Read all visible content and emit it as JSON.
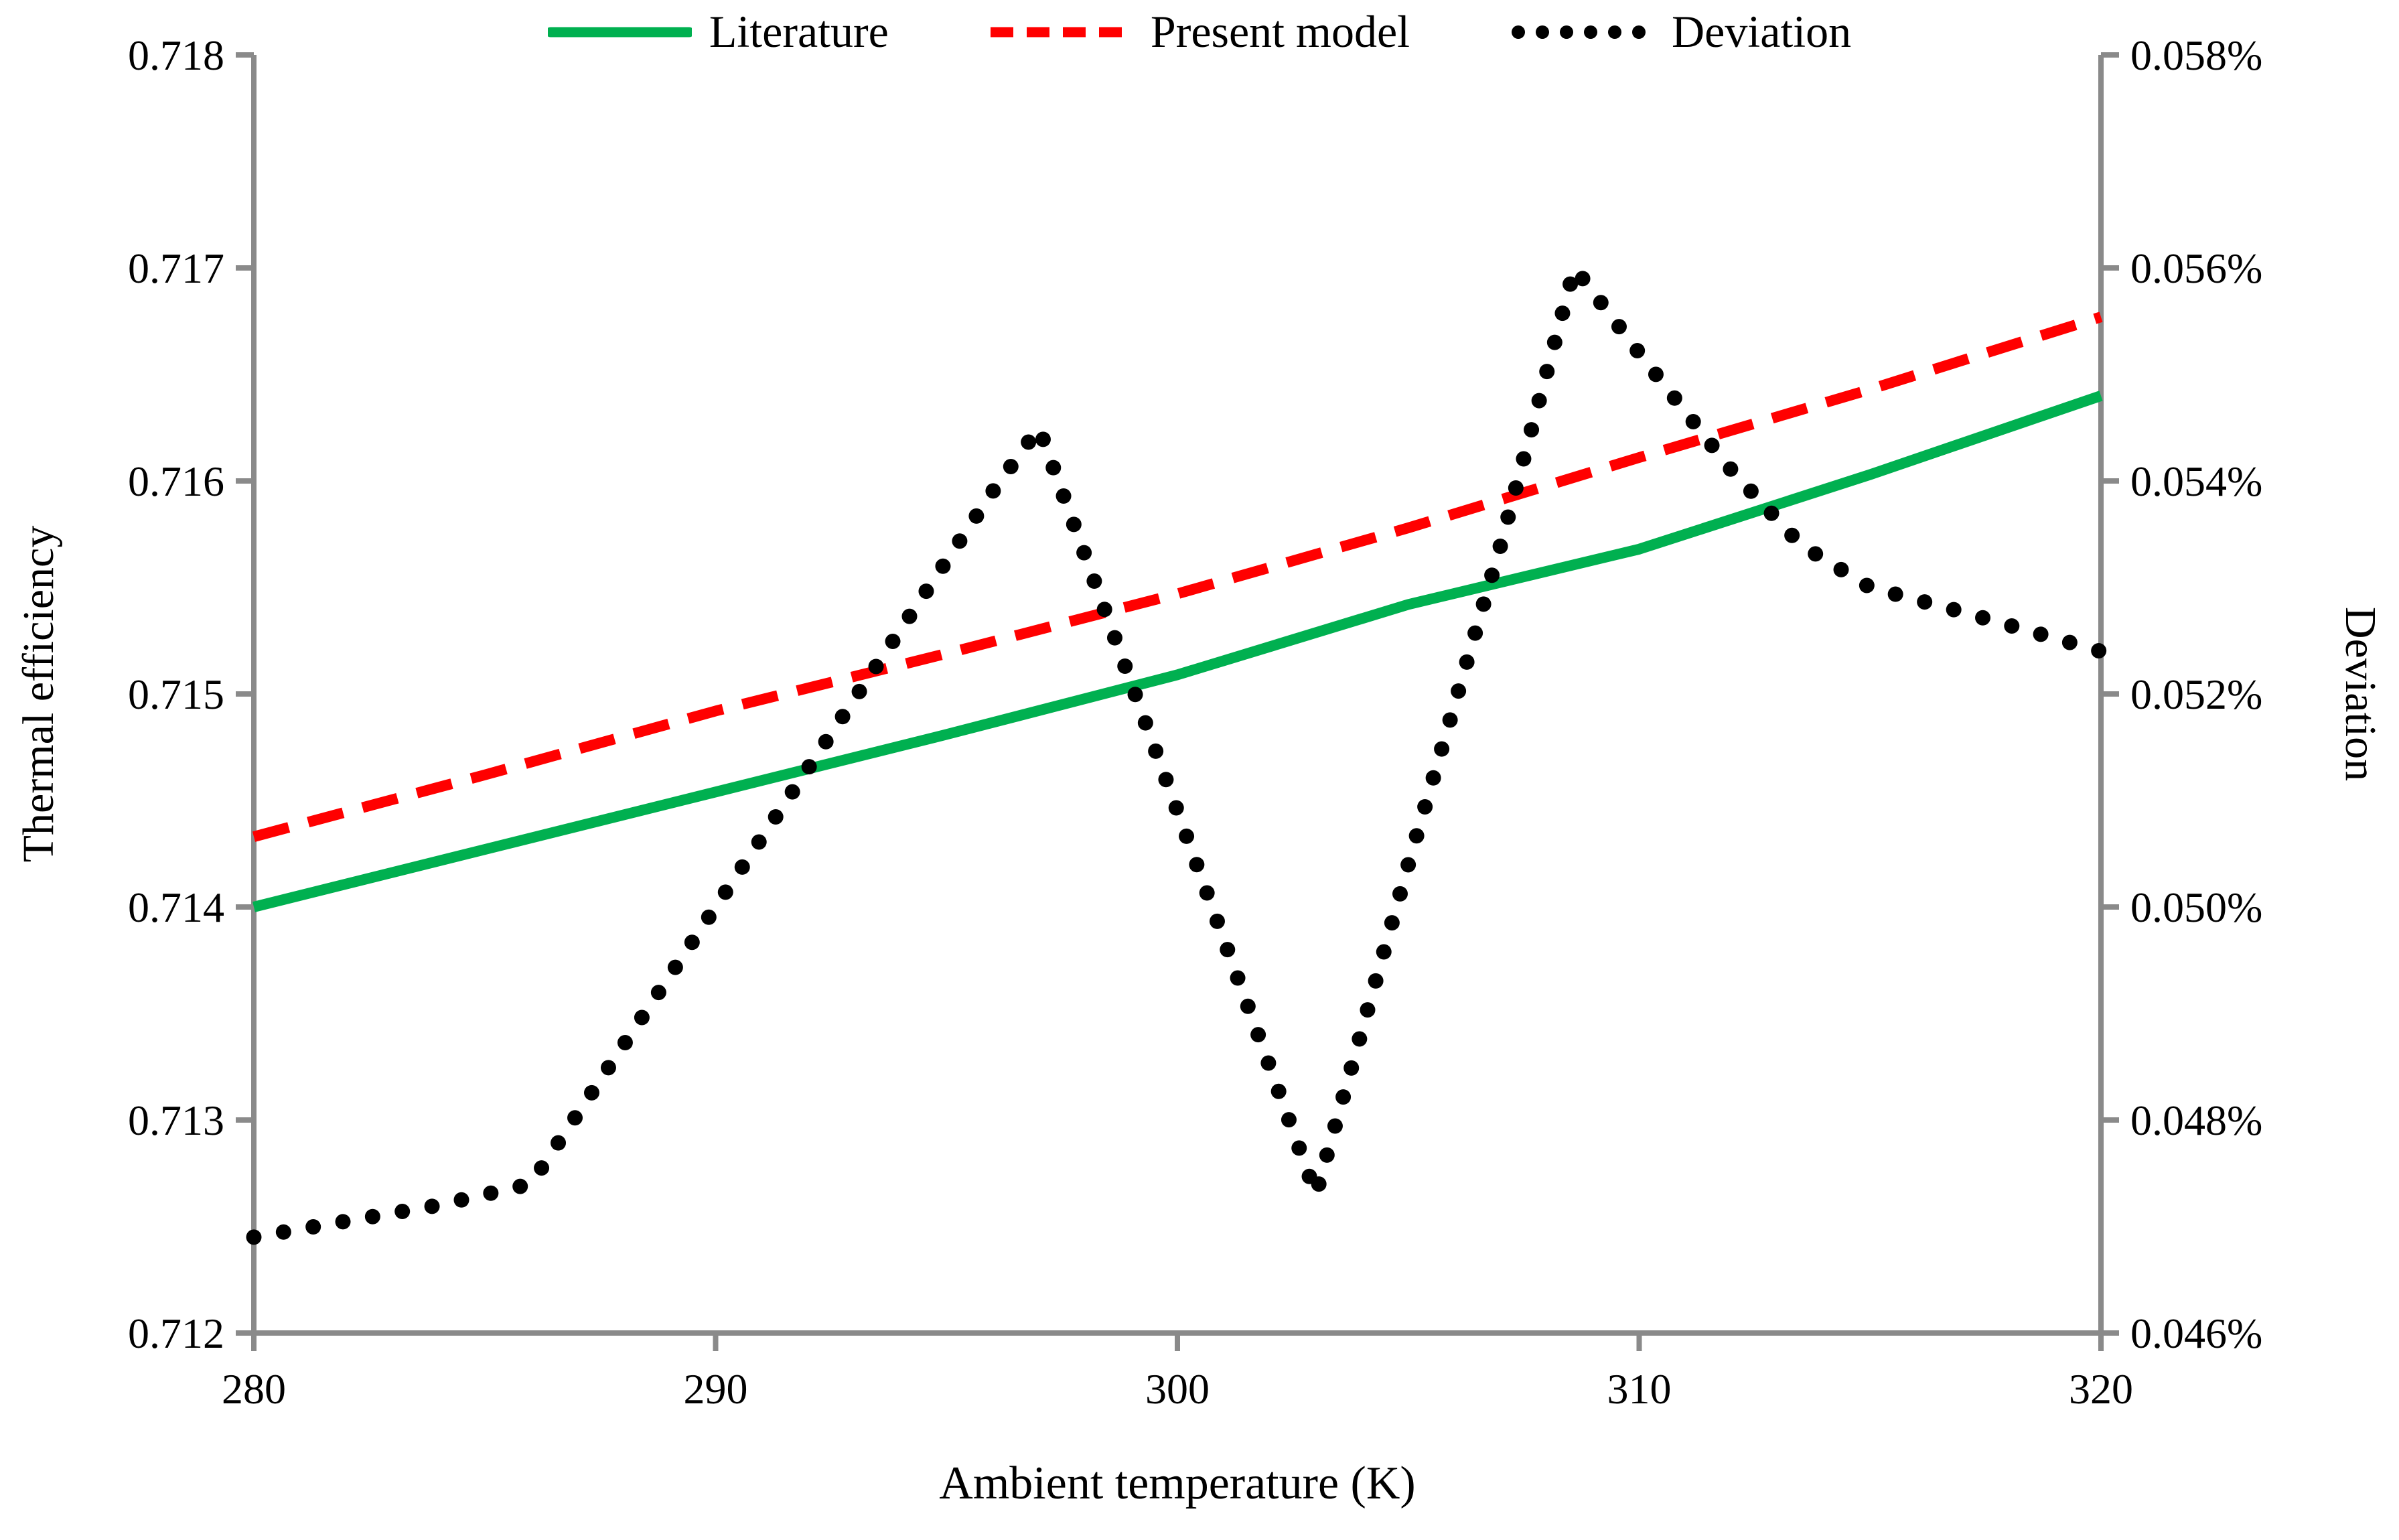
{
  "legend": {
    "items": [
      {
        "label": "Literature",
        "color": "#00B050",
        "style": "solid"
      },
      {
        "label": "Present model",
        "color": "#FF0000",
        "style": "dashed"
      },
      {
        "label": "Deviation",
        "color": "#000000",
        "style": "dotted"
      }
    ]
  },
  "axes": {
    "x": {
      "title": "Ambient temperature (K)",
      "min": 280,
      "max": 320,
      "tick_labels": [
        "280",
        "290",
        "300",
        "310",
        "320"
      ]
    },
    "y_left": {
      "title": "Thermal efficiency",
      "min": 0.712,
      "max": 0.718,
      "tick_labels": [
        "0.718",
        "0.717",
        "0.716",
        "0.715",
        "0.714",
        "0.713",
        "0.712"
      ]
    },
    "y_right": {
      "title": "Deviation",
      "min": 0.046,
      "max": 0.058,
      "tick_labels": [
        "0.058%",
        "0.056%",
        "0.054%",
        "0.052%",
        "0.050%",
        "0.048%",
        "0.046%"
      ]
    }
  },
  "chart_data": {
    "type": "line",
    "title": "",
    "xlabel": "Ambient temperature (K)",
    "ylabel_left": "Thermal efficiency",
    "ylabel_right": "Deviation",
    "x_range": [
      280,
      320
    ],
    "y_left_range": [
      0.712,
      0.718
    ],
    "y_right_range_percent": [
      0.046,
      0.058
    ],
    "grid": false,
    "legend_position": "top-center",
    "axis_color": "#8A8A8A",
    "series": [
      {
        "name": "Literature",
        "type": "line",
        "style": "solid",
        "color": "#00B050",
        "axis": "left",
        "x": [
          280,
          285,
          290,
          295,
          300,
          305,
          310,
          315,
          320
        ],
        "y": [
          0.714,
          0.71427,
          0.71454,
          0.71481,
          0.71509,
          0.71542,
          0.71568,
          0.71603,
          0.7164
        ]
      },
      {
        "name": "Present model",
        "type": "line",
        "style": "dashed",
        "color": "#FF0000",
        "axis": "left",
        "x": [
          280,
          285,
          290,
          295,
          300,
          305,
          310,
          315,
          320
        ],
        "y": [
          0.71433,
          0.71462,
          0.71492,
          0.71519,
          0.71547,
          0.71578,
          0.71611,
          0.71643,
          0.71677
        ]
      },
      {
        "name": "Deviation",
        "type": "line",
        "style": "dotted",
        "color": "#000000",
        "axis": "right",
        "unit": "%",
        "x": [
          280,
          282,
          284,
          286,
          288,
          290,
          292,
          294,
          296,
          297,
          299,
          301,
          303,
          305,
          307,
          308.6,
          310,
          312,
          313.5,
          315,
          317,
          320
        ],
        "y": [
          0.0469,
          0.04705,
          0.0472,
          0.0474,
          0.0487,
          0.05,
          0.0513,
          0.0526,
          0.0539,
          0.0545,
          0.0521,
          0.0497,
          0.0473,
          0.0504,
          0.0534,
          0.056,
          0.0552,
          0.0541,
          0.0534,
          0.053,
          0.05277,
          0.0524
        ]
      }
    ]
  }
}
